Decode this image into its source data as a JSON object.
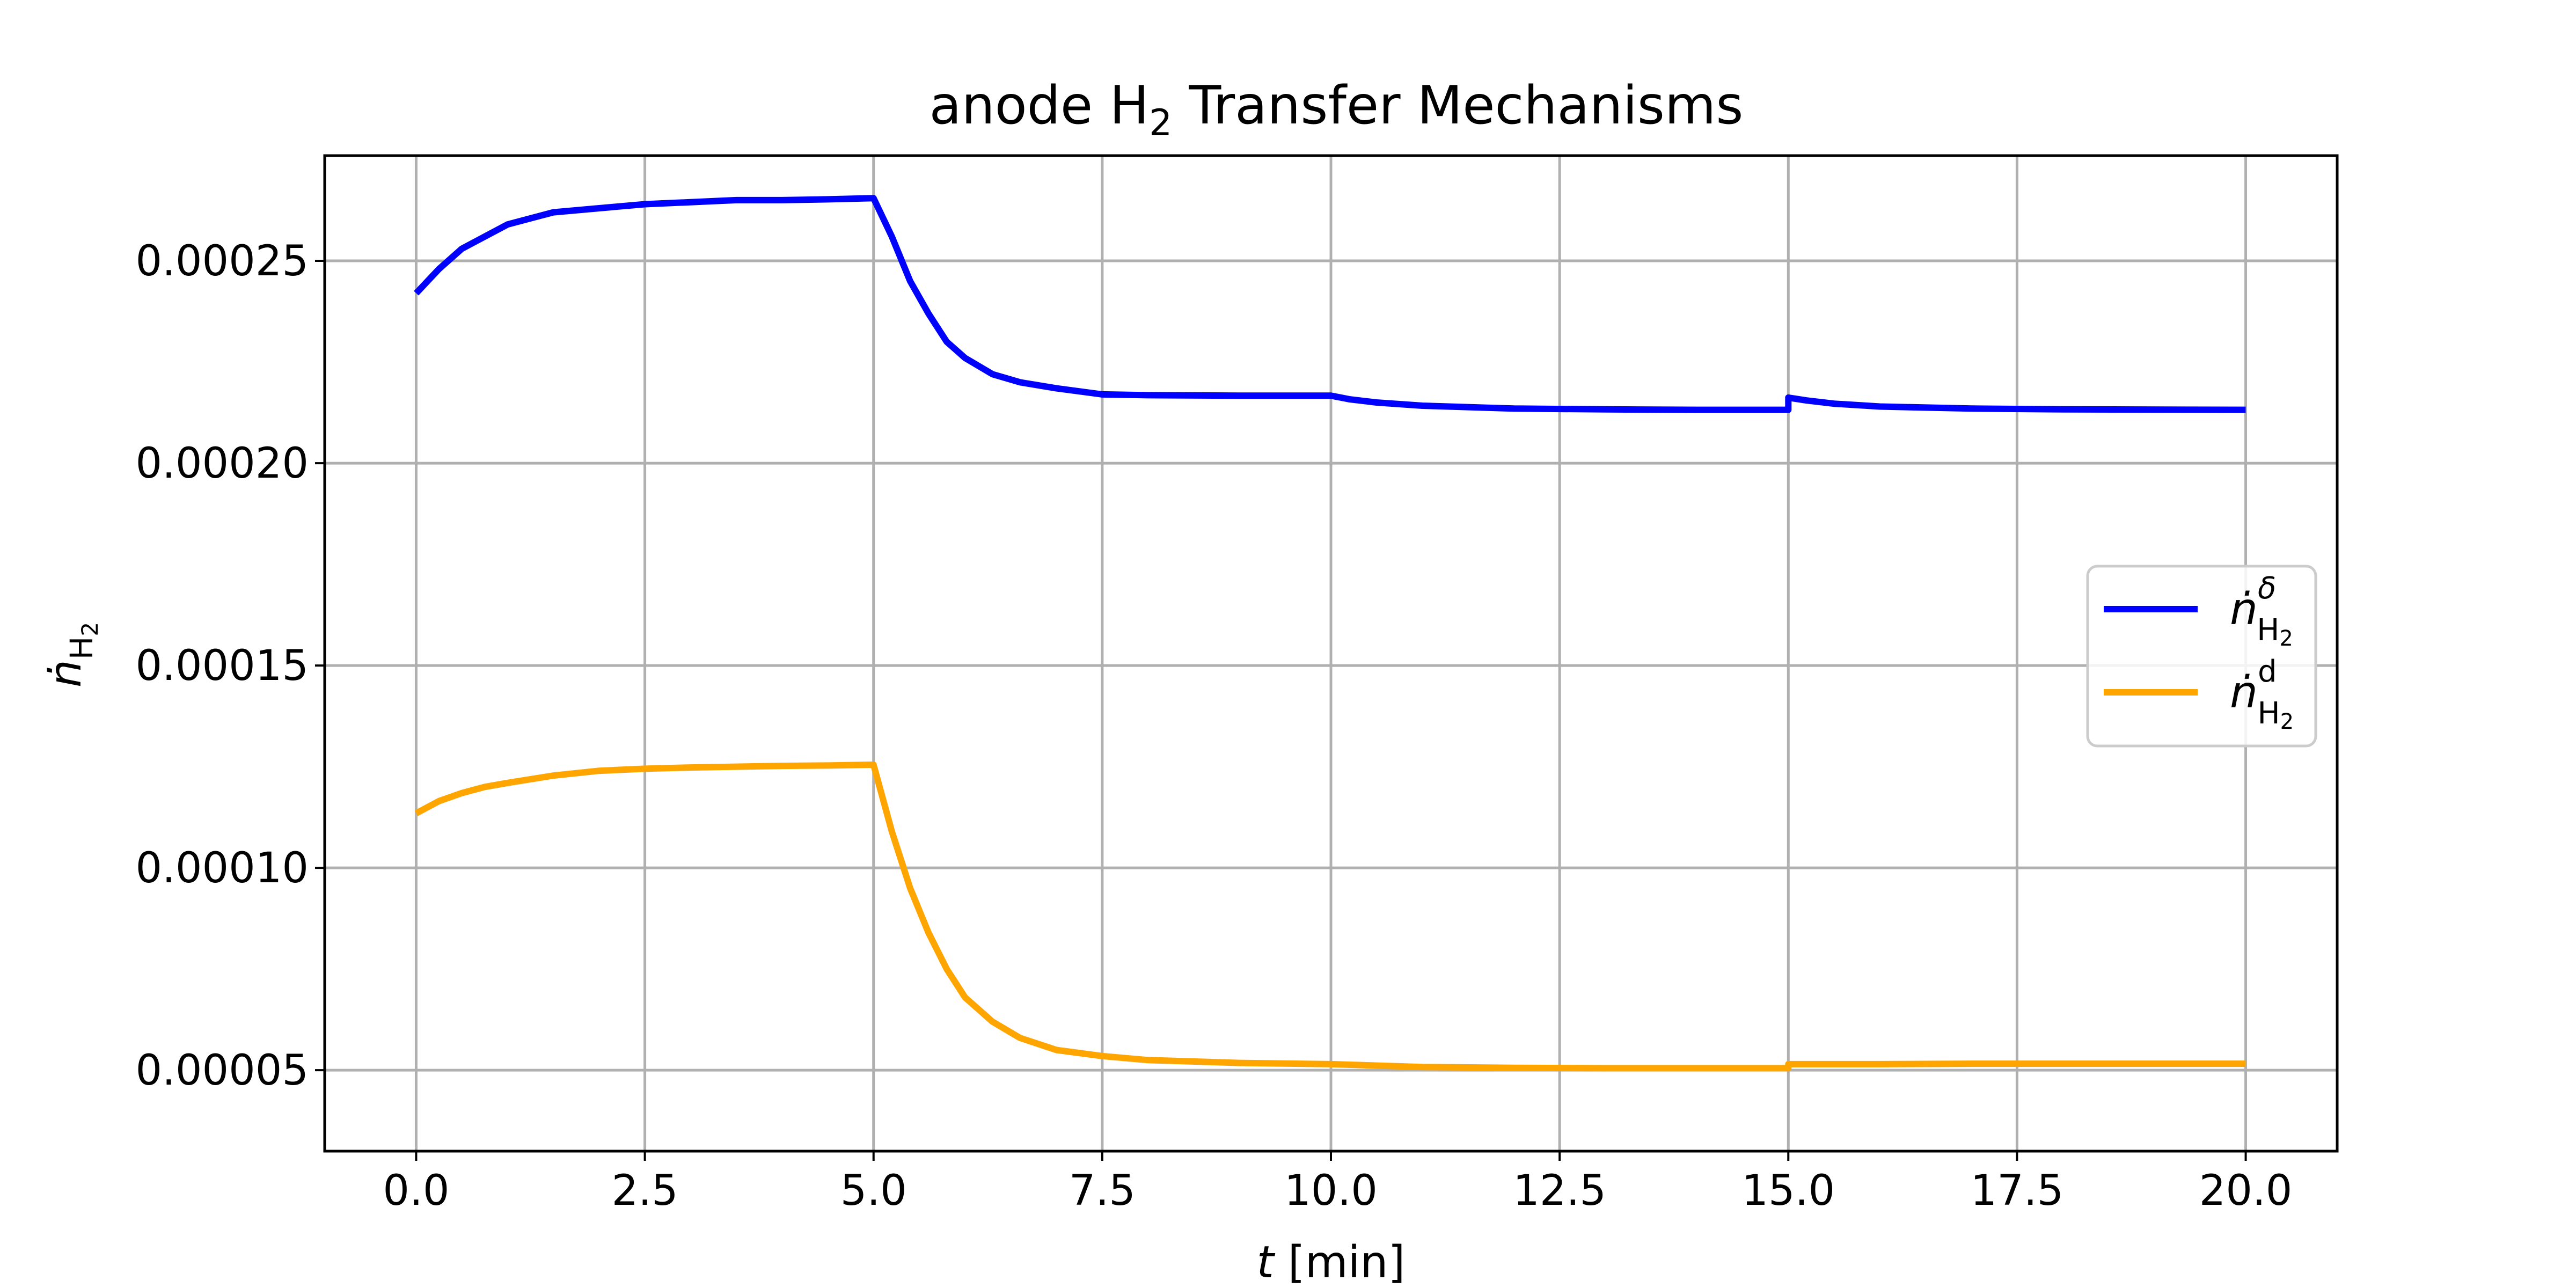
{
  "chart_data": {
    "type": "line",
    "title": {
      "pre": "anode H",
      "sub": "2",
      "post": " Transfer Mechanisms"
    },
    "xlabel": {
      "var": "t",
      "unit": " [min]"
    },
    "ylabel": {
      "base": "ṅ",
      "sub": "H",
      "subsub": "2"
    },
    "xlim": [
      -1.0,
      21.0
    ],
    "ylim": [
      3e-05,
      0.000276
    ],
    "xticks": [
      0.0,
      2.5,
      5.0,
      7.5,
      10.0,
      12.5,
      15.0,
      17.5,
      20.0
    ],
    "xtick_labels": [
      "0.0",
      "2.5",
      "5.0",
      "7.5",
      "10.0",
      "12.5",
      "15.0",
      "17.5",
      "20.0"
    ],
    "yticks": [
      5e-05,
      0.0001,
      0.00015,
      0.0002,
      0.00025
    ],
    "ytick_labels": [
      "0.00005",
      "0.00010",
      "0.00015",
      "0.00020",
      "0.00025"
    ],
    "grid": true,
    "legend_position": "center-right",
    "series": [
      {
        "name": "ṅ",
        "name_sup": "δ",
        "name_sub": "H",
        "name_subsub": "2",
        "color": "#0000ff",
        "x": [
          0.0,
          0.25,
          0.5,
          0.75,
          1.0,
          1.5,
          2.0,
          2.5,
          3.0,
          3.5,
          4.0,
          4.5,
          5.0,
          5.2,
          5.4,
          5.6,
          5.8,
          6.0,
          6.3,
          6.6,
          7.0,
          7.5,
          8.0,
          9.0,
          10.0,
          10.2,
          10.5,
          11.0,
          12.0,
          13.0,
          14.0,
          15.0,
          15.0,
          15.2,
          15.5,
          16.0,
          17.0,
          18.0,
          20.0
        ],
        "y": [
          0.000242,
          0.000248,
          0.000253,
          0.000256,
          0.000259,
          0.000262,
          0.000263,
          0.000264,
          0.0002645,
          0.000265,
          0.000265,
          0.0002652,
          0.0002655,
          0.000256,
          0.000245,
          0.000237,
          0.00023,
          0.000226,
          0.000222,
          0.00022,
          0.0002185,
          0.000217,
          0.0002168,
          0.0002167,
          0.0002167,
          0.0002158,
          0.000215,
          0.0002142,
          0.0002135,
          0.0002133,
          0.0002132,
          0.0002132,
          0.0002162,
          0.0002155,
          0.0002147,
          0.000214,
          0.0002135,
          0.0002133,
          0.0002132
        ]
      },
      {
        "name": "ṅ",
        "name_sup": "d",
        "name_sub": "H",
        "name_subsub": "2",
        "color": "#ffa500",
        "x": [
          0.0,
          0.25,
          0.5,
          0.75,
          1.0,
          1.5,
          2.0,
          2.5,
          3.0,
          3.5,
          4.0,
          4.5,
          5.0,
          5.2,
          5.4,
          5.6,
          5.8,
          6.0,
          6.3,
          6.6,
          7.0,
          7.5,
          8.0,
          9.0,
          10.0,
          11.0,
          12.0,
          13.0,
          14.0,
          15.0,
          15.0,
          16.0,
          17.0,
          18.0,
          20.0
        ],
        "y": [
          0.0001135,
          0.0001165,
          0.0001185,
          0.00012,
          0.000121,
          0.0001228,
          0.000124,
          0.0001245,
          0.0001248,
          0.000125,
          0.0001252,
          0.0001253,
          0.0001255,
          0.000109,
          9.5e-05,
          8.4e-05,
          7.5e-05,
          6.8e-05,
          6.2e-05,
          5.8e-05,
          5.5e-05,
          5.35e-05,
          5.25e-05,
          5.18e-05,
          5.15e-05,
          5.08e-05,
          5.06e-05,
          5.05e-05,
          5.05e-05,
          5.05e-05,
          5.15e-05,
          5.15e-05,
          5.16e-05,
          5.16e-05,
          5.16e-05
        ]
      }
    ]
  }
}
